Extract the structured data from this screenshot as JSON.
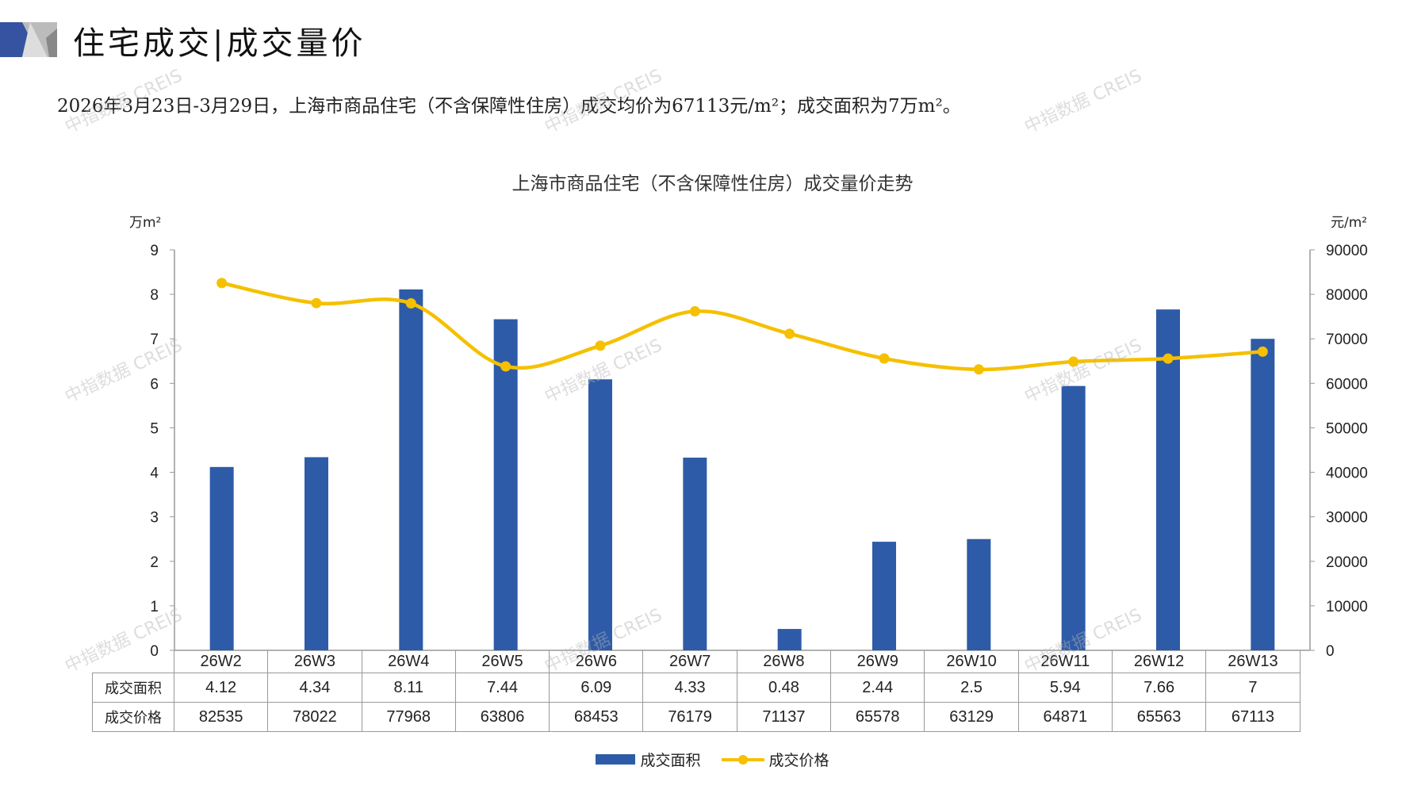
{
  "header": {
    "title": "住宅成交|成交量价",
    "subtitle": "2026年3月23日-3月29日，上海市商品住宅（不含保障性住房）成交均价为67113元/m²；成交面积为7万m²。"
  },
  "watermark": "中指数据 CREIS",
  "colors": {
    "bar": "#2E5BA8",
    "line": "#F5C000",
    "logo_blue": "#3553A0",
    "logo_gray": "#BBBBBB"
  },
  "chart_data": {
    "type": "bar+line",
    "title": "上海市商品住宅（不含保障性住房）成交量价走势",
    "categories": [
      "26W2",
      "26W3",
      "26W4",
      "26W5",
      "26W6",
      "26W7",
      "26W8",
      "26W9",
      "26W10",
      "26W11",
      "26W12",
      "26W13"
    ],
    "series": [
      {
        "name": "成交面积",
        "type": "bar",
        "axis": "left",
        "values": [
          4.12,
          4.34,
          8.11,
          7.44,
          6.09,
          4.33,
          0.48,
          2.44,
          2.5,
          5.94,
          7.66,
          7
        ],
        "display": [
          "4.12",
          "4.34",
          "8.11",
          "7.44",
          "6.09",
          "4.33",
          "0.48",
          "2.44",
          "2.5",
          "5.94",
          "7.66",
          "7"
        ]
      },
      {
        "name": "成交价格",
        "type": "line",
        "axis": "right",
        "values": [
          82535,
          78022,
          77968,
          63806,
          68453,
          76179,
          71137,
          65578,
          63129,
          64871,
          65563,
          67113
        ]
      }
    ],
    "ylabel_left": "万m²",
    "ylabel_right": "元/m²",
    "ylim_left": [
      0,
      9
    ],
    "ylim_right": [
      0,
      90000
    ],
    "yticks_left": [
      "0",
      "1",
      "2",
      "3",
      "4",
      "5",
      "6",
      "7",
      "8",
      "9"
    ],
    "yticks_right": [
      "0",
      "10000",
      "20000",
      "30000",
      "40000",
      "50000",
      "60000",
      "70000",
      "80000",
      "90000"
    ],
    "legend": "bottom",
    "grid": false
  }
}
